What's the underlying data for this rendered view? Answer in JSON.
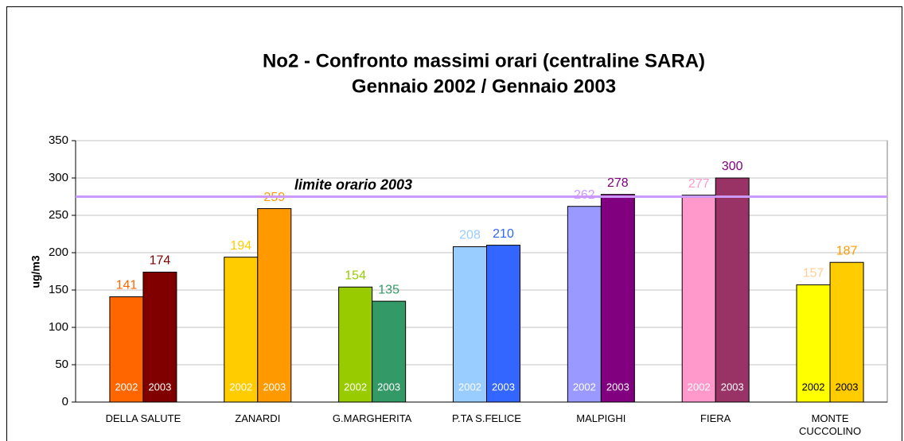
{
  "chart_data": {
    "type": "bar",
    "title": "No2 - Confronto massimi orari (centraline SARA)",
    "subtitle": "Gennaio 2002 / Gennaio 2003",
    "y_label": "ug/m3",
    "categories": [
      "DELLA SALUTE",
      "ZANARDI",
      "G.MARGHERITA",
      "P.TA S.FELICE",
      "MALPIGHI",
      "FIERA",
      "MONTE CUCCOLINO"
    ],
    "series": [
      {
        "name": "2002",
        "values": [
          141,
          194,
          154,
          208,
          262,
          277,
          157
        ],
        "colors": [
          "#ff6600",
          "#ffcc00",
          "#99cc00",
          "#99ccff",
          "#9999ff",
          "#ff99cc",
          "#ffff00"
        ],
        "label_colors": [
          "#ff6600",
          "#ffcc00",
          "#99cc00",
          "#99ccff",
          "#cc99ff",
          "#ff99cc",
          "#ffcc99"
        ],
        "inner_label_colors": [
          "#ffffff",
          "#ffffff",
          "#ffffff",
          "#ffffff",
          "#ffffff",
          "#ffffff",
          "#000000"
        ]
      },
      {
        "name": "2003",
        "values": [
          174,
          259,
          135,
          210,
          278,
          300,
          187
        ],
        "colors": [
          "#800000",
          "#ff9900",
          "#339966",
          "#3366ff",
          "#800080",
          "#993366",
          "#ffcc00"
        ],
        "label_colors": [
          "#800000",
          "#ff9900",
          "#339966",
          "#3366ff",
          "#800080",
          "#800080",
          "#ff9900"
        ],
        "inner_label_colors": [
          "#ffffff",
          "#ffffff",
          "#ffffff",
          "#ffffff",
          "#ffffff",
          "#ffffff",
          "#000000"
        ]
      }
    ],
    "reference_line": {
      "value": 275,
      "label": "limite orario 2003",
      "color": "#cc99ff"
    },
    "ylim": [
      0,
      350
    ],
    "yticks": [
      0,
      50,
      100,
      150,
      200,
      250,
      300,
      350
    ],
    "grid": true
  }
}
